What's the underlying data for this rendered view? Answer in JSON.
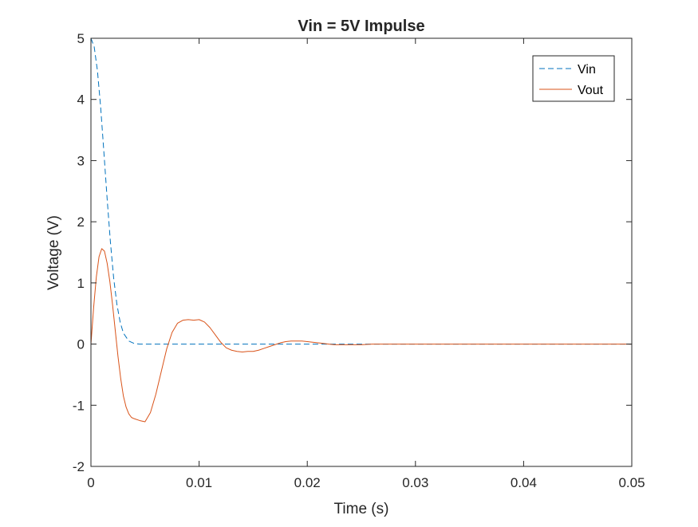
{
  "chart_data": {
    "type": "line",
    "title": "Vin = 5V Impulse",
    "xlabel": "Time (s)",
    "ylabel": "Voltage (V)",
    "xlim": [
      0,
      0.05
    ],
    "ylim": [
      -2,
      5
    ],
    "x_ticks": [
      "0",
      "0.01",
      "0.02",
      "0.03",
      "0.04",
      "0.05"
    ],
    "y_ticks": [
      "-2",
      "-1",
      "0",
      "1",
      "2",
      "3",
      "4",
      "5"
    ],
    "grid": false,
    "legend_position": "top-right",
    "series": [
      {
        "name": "Vin",
        "color": "#0072BD",
        "dash": true,
        "x": [
          0,
          0.0003,
          0.0006,
          0.0009,
          0.0012,
          0.0015,
          0.0018,
          0.0021,
          0.0024,
          0.0027,
          0.003,
          0.0035,
          0.004,
          0.0045,
          0.005,
          0.0055,
          0.006,
          0.01,
          0.02,
          0.03,
          0.04,
          0.05
        ],
        "values": [
          5.0,
          4.86,
          4.47,
          3.87,
          3.13,
          2.37,
          1.67,
          1.08,
          0.65,
          0.36,
          0.18,
          0.05,
          0.01,
          0.0,
          0.0,
          0.0,
          0.0,
          0.0,
          0.0,
          0.0,
          0.0,
          0.0
        ]
      },
      {
        "name": "Vout",
        "color": "#D95319",
        "dash": false,
        "x": [
          0,
          0.00025,
          0.0005,
          0.00075,
          0.001,
          0.00125,
          0.0015,
          0.00175,
          0.002,
          0.00225,
          0.0025,
          0.00275,
          0.003,
          0.00325,
          0.0035,
          0.00375,
          0.004,
          0.0045,
          0.005,
          0.0055,
          0.006,
          0.0065,
          0.007,
          0.0075,
          0.008,
          0.0085,
          0.009,
          0.0095,
          0.01,
          0.0105,
          0.011,
          0.0115,
          0.012,
          0.0125,
          0.013,
          0.0135,
          0.014,
          0.0145,
          0.015,
          0.0155,
          0.016,
          0.0165,
          0.017,
          0.0175,
          0.018,
          0.0185,
          0.019,
          0.0195,
          0.02,
          0.0205,
          0.021,
          0.0215,
          0.022,
          0.0225,
          0.023,
          0.0235,
          0.024,
          0.0245,
          0.025,
          0.026,
          0.027,
          0.028,
          0.029,
          0.03,
          0.032,
          0.035,
          0.04,
          0.05
        ],
        "values": [
          0.0,
          0.6,
          1.1,
          1.43,
          1.56,
          1.52,
          1.32,
          1.02,
          0.64,
          0.22,
          -0.2,
          -0.56,
          -0.85,
          -1.03,
          -1.14,
          -1.2,
          -1.22,
          -1.25,
          -1.27,
          -1.12,
          -0.82,
          -0.45,
          -0.08,
          0.19,
          0.34,
          0.39,
          0.4,
          0.39,
          0.4,
          0.36,
          0.27,
          0.15,
          0.03,
          -0.06,
          -0.1,
          -0.12,
          -0.13,
          -0.12,
          -0.12,
          -0.1,
          -0.07,
          -0.04,
          -0.01,
          0.02,
          0.04,
          0.05,
          0.05,
          0.05,
          0.04,
          0.03,
          0.02,
          0.01,
          0.0,
          -0.01,
          -0.01,
          -0.01,
          -0.01,
          -0.01,
          -0.01,
          0.0,
          0.0,
          0.0,
          0.0,
          0.0,
          0.0,
          0.0,
          0.0,
          0.0
        ]
      }
    ]
  }
}
